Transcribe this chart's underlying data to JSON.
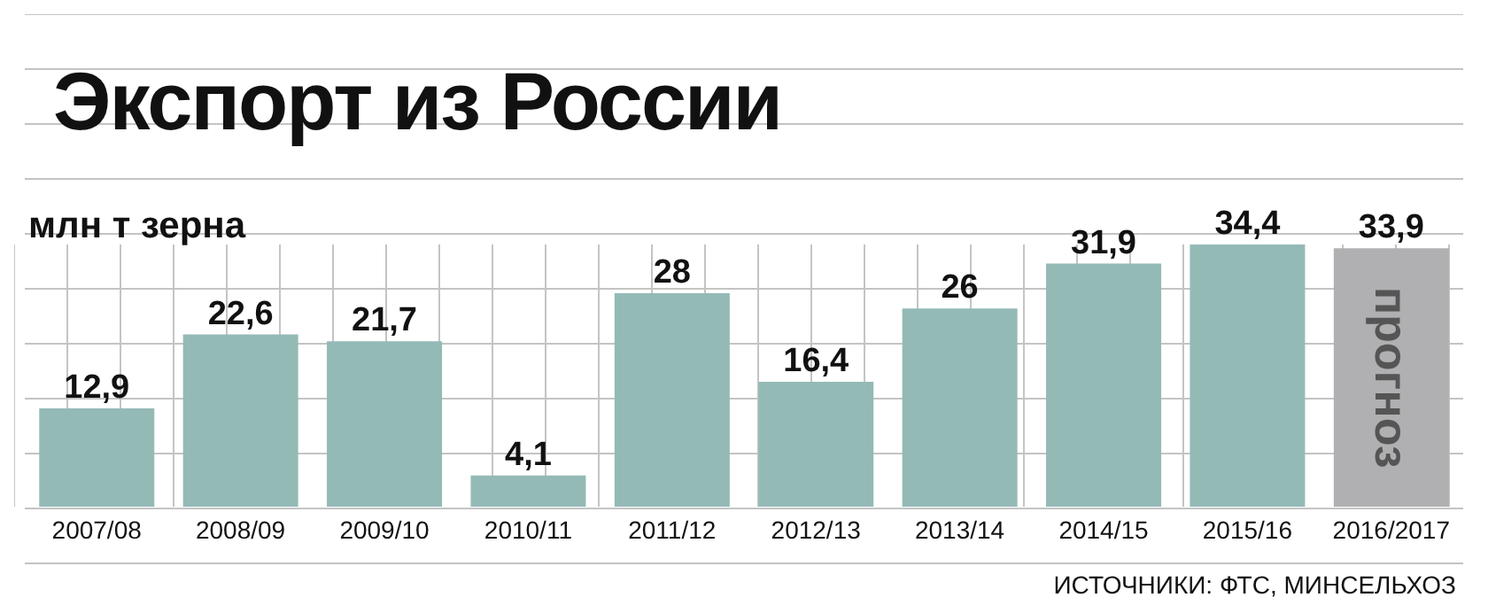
{
  "chart_data": {
    "type": "bar",
    "title": "Экспорт из России",
    "ylabel": "млн т зерна",
    "categories": [
      "2007/08",
      "2008/09",
      "2009/10",
      "2010/11",
      "2011/12",
      "2012/13",
      "2013/14",
      "2014/15",
      "2015/16",
      "2016/2017"
    ],
    "values": [
      12.9,
      22.6,
      21.7,
      4.1,
      28,
      16.4,
      26,
      31.9,
      34.4,
      33.9
    ],
    "colors": [
      "#94bab6",
      "#94bab6",
      "#94bab6",
      "#94bab6",
      "#94bab6",
      "#94bab6",
      "#94bab6",
      "#94bab6",
      "#94bab6",
      "#b0b0b2"
    ],
    "value_labels": [
      "12,9",
      "22,6",
      "21,7",
      "4,1",
      "28",
      "16,4",
      "26",
      "31,9",
      "34,4",
      "33,9"
    ],
    "grid": true,
    "legend": false,
    "annotations": [
      "прогноз",
      "ИСТОЧНИКИ: ФТС, МИНСЕЛЬХОЗ"
    ]
  }
}
